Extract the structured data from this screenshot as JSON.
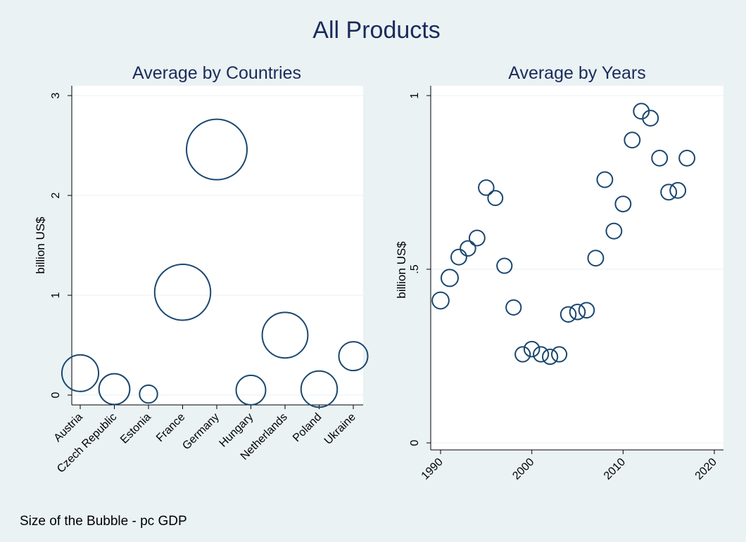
{
  "figure": {
    "title": "All Products",
    "note": "Size of the Bubble - pc GDP",
    "colors": {
      "outer_background": "#eaf2f3",
      "plot_background": "#ffffff",
      "bubble_stroke": "#1a476f",
      "grid": "#eaf2f3",
      "title": "#1a2b5c"
    }
  },
  "chart_data": [
    {
      "type": "scatter",
      "title": "Average by Countries",
      "xlabel": "",
      "ylabel": "billion US$",
      "ylim": [
        0,
        3
      ],
      "yticks": [
        {
          "value": 0,
          "label": "0"
        },
        {
          "value": 1,
          "label": "1"
        },
        {
          "value": 2,
          "label": "2"
        },
        {
          "value": 3,
          "label": "3"
        }
      ],
      "grid": true,
      "marker": "hollow-circle-sized-by-pc-gdp",
      "categories": [
        "Austria",
        "Czech Republic",
        "Estonia",
        "France",
        "Germany",
        "Hungary",
        "Netherlands",
        "Poland",
        "Ukraine"
      ],
      "values": [
        0.22,
        0.06,
        0.01,
        1.03,
        2.46,
        0.05,
        0.6,
        0.06,
        0.39
      ],
      "bubble_size": [
        3.2,
        2.1,
        0.5,
        8.4,
        10.0,
        1.9,
        5.3,
        3.1,
        1.8
      ]
    },
    {
      "type": "scatter",
      "title": "Average by Years",
      "xlabel": "",
      "ylabel": "billion US$",
      "xlim": [
        1990,
        2020
      ],
      "ylim": [
        0,
        1
      ],
      "xticks": [
        {
          "value": 1990,
          "label": "1990"
        },
        {
          "value": 2000,
          "label": "2000"
        },
        {
          "value": 2010,
          "label": "2010"
        },
        {
          "value": 2020,
          "label": "2020"
        }
      ],
      "yticks": [
        {
          "value": 0,
          "label": "0"
        },
        {
          "value": 0.5,
          "label": ".5"
        },
        {
          "value": 1,
          "label": "1"
        }
      ],
      "grid": true,
      "marker": "hollow-circle-sized-by-pc-gdp",
      "x": [
        1990,
        1991,
        1992,
        1993,
        1994,
        1995,
        1996,
        1997,
        1998,
        1999,
        2000,
        2001,
        2002,
        2003,
        2004,
        2005,
        2006,
        2007,
        2008,
        2009,
        2010,
        2011,
        2012,
        2013,
        2014,
        2015,
        2016,
        2017
      ],
      "y": [
        0.41,
        0.475,
        0.535,
        0.56,
        0.59,
        0.735,
        0.705,
        0.51,
        0.39,
        0.255,
        0.27,
        0.255,
        0.248,
        0.255,
        0.37,
        0.377,
        0.382,
        0.532,
        0.758,
        0.61,
        0.688,
        0.872,
        0.955,
        0.935,
        0.82,
        0.722,
        0.727,
        0.82
      ],
      "bubble_size": [
        2.4,
        2.5,
        1.8,
        1.7,
        1.8,
        1.7,
        1.5,
        1.6,
        1.6,
        1.6,
        1.7,
        1.6,
        1.6,
        1.6,
        1.7,
        1.7,
        1.7,
        1.8,
        1.8,
        1.8,
        1.8,
        1.8,
        1.8,
        1.8,
        1.8,
        1.8,
        1.8,
        1.8
      ]
    }
  ]
}
